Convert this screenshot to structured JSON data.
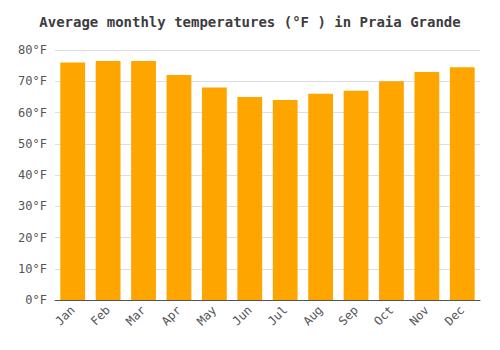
{
  "chart_data": {
    "type": "bar",
    "title": "Average monthly temperatures (°F ) in Praia Grande",
    "categories": [
      "Jan",
      "Feb",
      "Mar",
      "Apr",
      "May",
      "Jun",
      "Jul",
      "Aug",
      "Sep",
      "Oct",
      "Nov",
      "Dec"
    ],
    "values": [
      76,
      76.5,
      76.5,
      72,
      68,
      65,
      64,
      66,
      67,
      70,
      73,
      74.5
    ],
    "color": "#FFA500",
    "ylim": [
      0,
      80
    ],
    "yticks": [
      {
        "value": 0,
        "label": "0°F"
      },
      {
        "value": 10,
        "label": "10°F"
      },
      {
        "value": 20,
        "label": "20°F"
      },
      {
        "value": 30,
        "label": "30°F"
      },
      {
        "value": 40,
        "label": "40°F"
      },
      {
        "value": 50,
        "label": "50°F"
      },
      {
        "value": 60,
        "label": "60°F"
      },
      {
        "value": 70,
        "label": "70°F"
      },
      {
        "value": 80,
        "label": "80°F"
      }
    ],
    "grid": true
  }
}
